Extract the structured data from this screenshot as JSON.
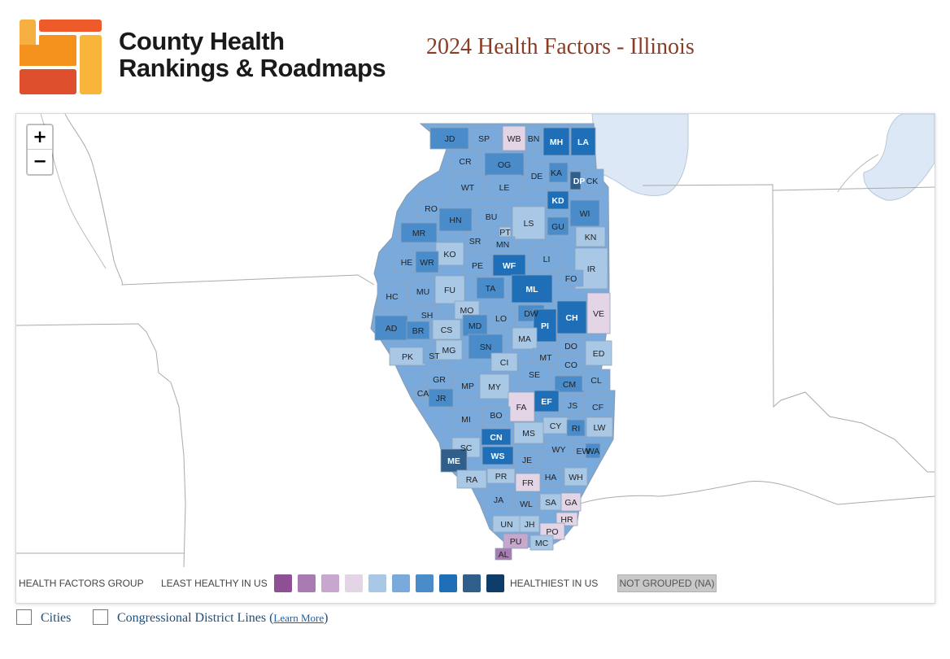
{
  "brand": {
    "line1": "County Health",
    "line2": "Rankings & Roadmaps"
  },
  "page_title": "2024 Health Factors - Illinois",
  "zoom": {
    "in_label": "+",
    "out_label": "−"
  },
  "colors": {
    "scale": [
      "#8e4f95",
      "#a97bb3",
      "#c7a7cd",
      "#e3d4e6",
      "#a9c8e5",
      "#7aaadb",
      "#4a8cca",
      "#1f6fb8",
      "#315f8c",
      "#0e3d6b"
    ],
    "na": "#c8c8c8",
    "lake": "#dce8f5",
    "border": "#a8a8a8"
  },
  "legend": {
    "group_label": "HEALTH FACTORS GROUP",
    "least_label": "LEAST HEALTHY IN US",
    "healthiest_label": "HEALTHIEST IN US",
    "na_label": "NOT GROUPED (NA)"
  },
  "options": {
    "cities_label": "Cities",
    "districts_label": "Congressional District Lines (",
    "learn_more_label": "Learn More",
    "close_paren": ")"
  },
  "counties": [
    {
      "code": "JD",
      "group": 7
    },
    {
      "code": "SP",
      "group": 6
    },
    {
      "code": "WB",
      "group": 4
    },
    {
      "code": "BN",
      "group": 6
    },
    {
      "code": "MH",
      "group": 8
    },
    {
      "code": "LA",
      "group": 8
    },
    {
      "code": "CR",
      "group": 6
    },
    {
      "code": "OG",
      "group": 7
    },
    {
      "code": "KA",
      "group": 7
    },
    {
      "code": "DP",
      "group": 9
    },
    {
      "code": "CK",
      "group": 6
    },
    {
      "code": "DE",
      "group": 6
    },
    {
      "code": "WT",
      "group": 6
    },
    {
      "code": "LE",
      "group": 6
    },
    {
      "code": "KD",
      "group": 8
    },
    {
      "code": "RO",
      "group": 6
    },
    {
      "code": "HN",
      "group": 7
    },
    {
      "code": "BU",
      "group": 6
    },
    {
      "code": "LS",
      "group": 5
    },
    {
      "code": "GU",
      "group": 7
    },
    {
      "code": "WI",
      "group": 7
    },
    {
      "code": "PT",
      "group": 5
    },
    {
      "code": "MR",
      "group": 7
    },
    {
      "code": "SR",
      "group": 6
    },
    {
      "code": "MN",
      "group": 6
    },
    {
      "code": "KN",
      "group": 5
    },
    {
      "code": "KO",
      "group": 5
    },
    {
      "code": "LI",
      "group": 6
    },
    {
      "code": "HE",
      "group": 6
    },
    {
      "code": "WR",
      "group": 7
    },
    {
      "code": "PE",
      "group": 6
    },
    {
      "code": "WF",
      "group": 8
    },
    {
      "code": "IR",
      "group": 5
    },
    {
      "code": "FO",
      "group": 6
    },
    {
      "code": "HC",
      "group": 6
    },
    {
      "code": "MU",
      "group": 6
    },
    {
      "code": "FU",
      "group": 5
    },
    {
      "code": "TA",
      "group": 7
    },
    {
      "code": "ML",
      "group": 8
    },
    {
      "code": "VE",
      "group": 4
    },
    {
      "code": "CH",
      "group": 8
    },
    {
      "code": "SH",
      "group": 6
    },
    {
      "code": "MO",
      "group": 5
    },
    {
      "code": "LO",
      "group": 6
    },
    {
      "code": "DW",
      "group": 7
    },
    {
      "code": "AD",
      "group": 7
    },
    {
      "code": "BR",
      "group": 7
    },
    {
      "code": "CS",
      "group": 5
    },
    {
      "code": "MD",
      "group": 7
    },
    {
      "code": "PI",
      "group": 8
    },
    {
      "code": "MA",
      "group": 5
    },
    {
      "code": "SN",
      "group": 7
    },
    {
      "code": "DO",
      "group": 6
    },
    {
      "code": "PK",
      "group": 5
    },
    {
      "code": "ST",
      "group": 6
    },
    {
      "code": "MG",
      "group": 5
    },
    {
      "code": "CI",
      "group": 5
    },
    {
      "code": "MT",
      "group": 6
    },
    {
      "code": "ED",
      "group": 5
    },
    {
      "code": "CO",
      "group": 6
    },
    {
      "code": "SE",
      "group": 6
    },
    {
      "code": "GR",
      "group": 6
    },
    {
      "code": "MP",
      "group": 6
    },
    {
      "code": "MY",
      "group": 5
    },
    {
      "code": "CM",
      "group": 7
    },
    {
      "code": "CL",
      "group": 6
    },
    {
      "code": "CA",
      "group": 6
    },
    {
      "code": "JR",
      "group": 7
    },
    {
      "code": "FA",
      "group": 4
    },
    {
      "code": "EF",
      "group": 8
    },
    {
      "code": "JS",
      "group": 6
    },
    {
      "code": "CF",
      "group": 6
    },
    {
      "code": "MI",
      "group": 6
    },
    {
      "code": "BO",
      "group": 6
    },
    {
      "code": "MS",
      "group": 5
    },
    {
      "code": "CY",
      "group": 5
    },
    {
      "code": "RI",
      "group": 7
    },
    {
      "code": "LW",
      "group": 5
    },
    {
      "code": "CN",
      "group": 8
    },
    {
      "code": "SC",
      "group": 5
    },
    {
      "code": "WY",
      "group": 6
    },
    {
      "code": "EW",
      "group": 6
    },
    {
      "code": "WA",
      "group": 7
    },
    {
      "code": "WS",
      "group": 8
    },
    {
      "code": "JE",
      "group": 6
    },
    {
      "code": "ME",
      "group": 9
    },
    {
      "code": "PR",
      "group": 5
    },
    {
      "code": "HA",
      "group": 6
    },
    {
      "code": "WH",
      "group": 5
    },
    {
      "code": "FR",
      "group": 4
    },
    {
      "code": "RA",
      "group": 5
    },
    {
      "code": "JA",
      "group": 6
    },
    {
      "code": "WL",
      "group": 6
    },
    {
      "code": "SA",
      "group": 5
    },
    {
      "code": "GA",
      "group": 4
    },
    {
      "code": "UN",
      "group": 5
    },
    {
      "code": "JH",
      "group": 5
    },
    {
      "code": "HR",
      "group": 4
    },
    {
      "code": "PO",
      "group": 4
    },
    {
      "code": "PU",
      "group": 3
    },
    {
      "code": "MC",
      "group": 5
    },
    {
      "code": "AL",
      "group": 2
    }
  ]
}
